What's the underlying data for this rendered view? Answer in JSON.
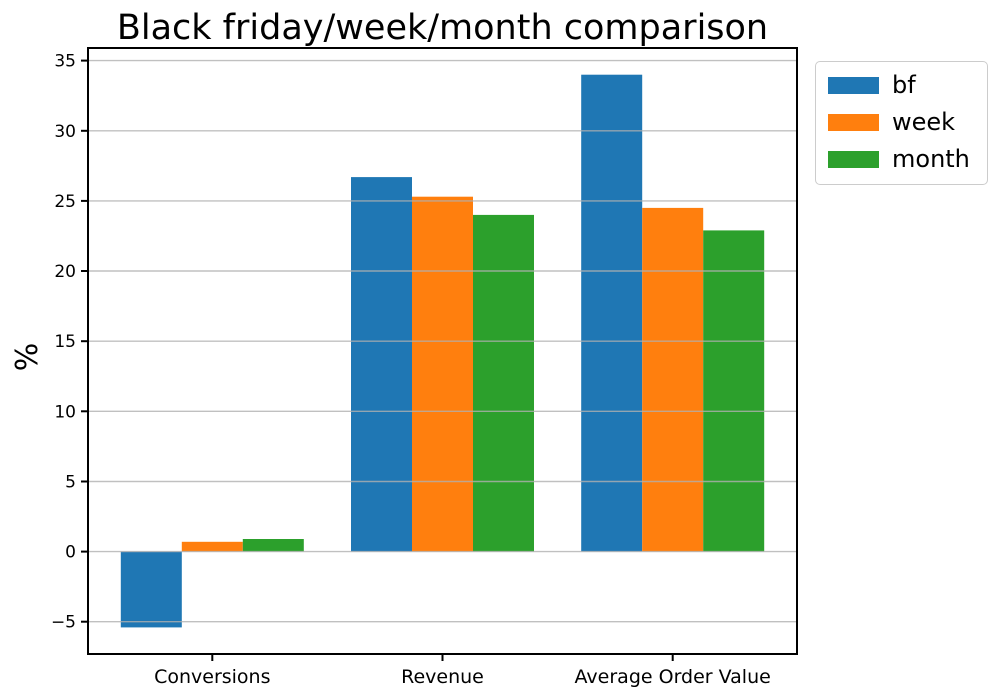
{
  "chart_data": {
    "type": "bar",
    "title": "Black friday/week/month comparison",
    "ylabel": "%",
    "xlabel": "",
    "categories": [
      "Conversions",
      "Revenue",
      "Average Order Value"
    ],
    "series": [
      {
        "name": "bf",
        "color": "#1f77b4",
        "values": [
          -5.4,
          26.7,
          34.0
        ]
      },
      {
        "name": "week",
        "color": "#ff7f0e",
        "values": [
          0.7,
          25.3,
          24.5
        ]
      },
      {
        "name": "month",
        "color": "#2ca02c",
        "values": [
          0.9,
          24.0,
          22.9
        ]
      }
    ],
    "ylim": [
      -7.3,
      35.9
    ],
    "yticks": [
      -5,
      0,
      5,
      10,
      15,
      20,
      25,
      30,
      35
    ],
    "grid": true,
    "grid_color": "#b0b0b0",
    "axis_color": "#000000",
    "legend": {
      "position": "outside-right",
      "entries": [
        "bf",
        "week",
        "month"
      ]
    }
  }
}
